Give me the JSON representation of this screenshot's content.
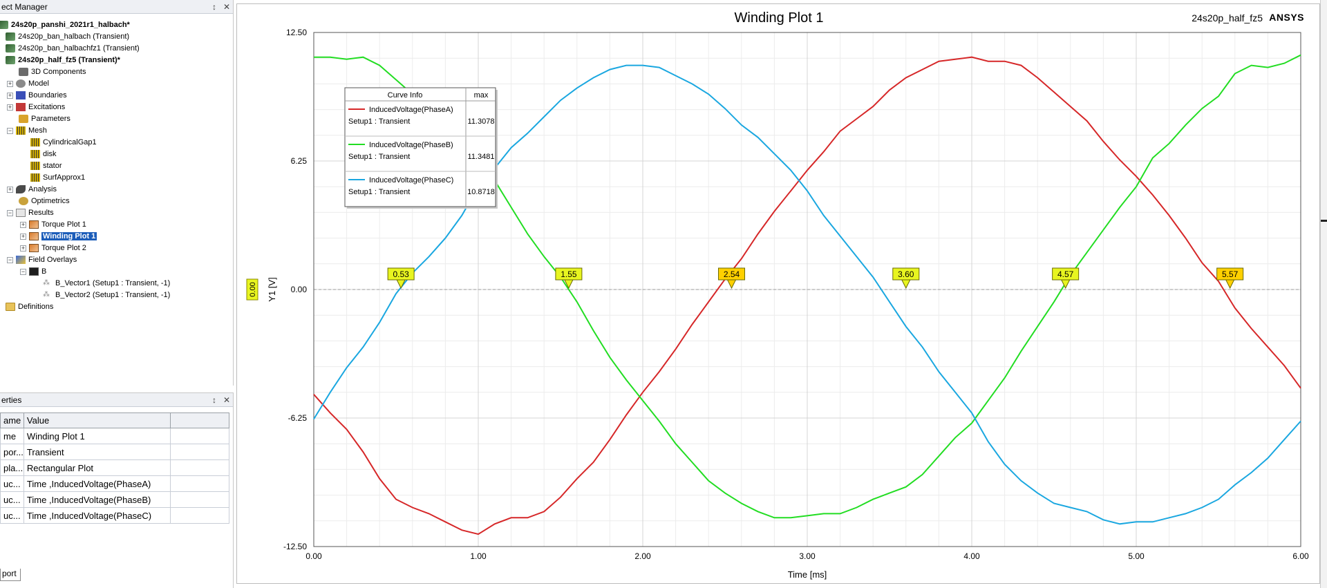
{
  "project_manager": {
    "title": "ect Manager",
    "pin_glyph": "↕",
    "close_glyph": "✕",
    "items": [
      {
        "label": "24s20p_panshi_2021r1_halbach*",
        "bold": true,
        "icon": "project-icon"
      },
      {
        "label": "24s20p_ban_halbach (Transient)",
        "icon": "design-icon"
      },
      {
        "label": "24s20p_ban_halbachfz1 (Transient)",
        "icon": "design-icon"
      },
      {
        "label": "24s20p_half_fz5 (Transient)*",
        "bold": true,
        "icon": "design-icon"
      },
      {
        "label": "3D Components",
        "icon": "components-icon"
      },
      {
        "label": "Model",
        "icon": "model-icon"
      },
      {
        "label": "Boundaries",
        "icon": "boundaries-icon"
      },
      {
        "label": "Excitations",
        "icon": "excitations-icon"
      },
      {
        "label": "Parameters",
        "icon": "parameters-icon"
      },
      {
        "label": "Mesh",
        "icon": "mesh-icon"
      },
      {
        "label": "CylindricalGap1",
        "icon": "mesh-op-icon"
      },
      {
        "label": "disk",
        "icon": "mesh-op-icon"
      },
      {
        "label": "stator",
        "icon": "mesh-op-icon"
      },
      {
        "label": "SurfApprox1",
        "icon": "mesh-op-icon"
      },
      {
        "label": "Analysis",
        "icon": "analysis-icon"
      },
      {
        "label": "Optimetrics",
        "icon": "optimetrics-icon"
      },
      {
        "label": "Results",
        "icon": "results-icon"
      },
      {
        "label": "Torque Plot 1",
        "icon": "plot-icon"
      },
      {
        "label": "Winding Plot 1",
        "icon": "plot-icon",
        "selected": true
      },
      {
        "label": "Torque Plot 2",
        "icon": "plot-icon"
      },
      {
        "label": "Field Overlays",
        "icon": "field-overlays-icon"
      },
      {
        "label": "B",
        "icon": "b-field-icon"
      },
      {
        "label": "B_Vector1 (Setup1 : Transient, -1)",
        "icon": "vector-icon"
      },
      {
        "label": "B_Vector2 (Setup1 : Transient, -1)",
        "icon": "vector-icon"
      },
      {
        "label": "Definitions",
        "icon": "folder-icon"
      }
    ]
  },
  "properties": {
    "title": "erties",
    "pin_glyph": "↕",
    "close_glyph": "✕",
    "columns": [
      "ame",
      "Value",
      ""
    ],
    "rows": [
      {
        "name": "me",
        "value": "Winding Plot 1"
      },
      {
        "name": "por...",
        "value": "Transient"
      },
      {
        "name": "pla...",
        "value": "Rectangular Plot"
      },
      {
        "name": "uc...",
        "value": "Time ,InducedVoltage(PhaseA)"
      },
      {
        "name": "uc...",
        "value": "Time ,InducedVoltage(PhaseB)"
      },
      {
        "name": "uc...",
        "value": "Time ,InducedVoltage(PhaseC)"
      }
    ],
    "tab_label": "port"
  },
  "plot": {
    "title": "Winding Plot 1",
    "design_name": "24s20p_half_fz5",
    "logo": "ANSYS"
  },
  "curve_info": {
    "header": "Curve Info",
    "max_header": "max",
    "entries": [
      {
        "name": "InducedVoltage(PhaseA)",
        "setup": "Setup1 : Transient",
        "max": "11.3078",
        "color": "#d62728"
      },
      {
        "name": "InducedVoltage(PhaseB)",
        "setup": "Setup1 : Transient",
        "max": "11.3481",
        "color": "#22dd22"
      },
      {
        "name": "InducedVoltage(PhaseC)",
        "setup": "Setup1 : Transient",
        "max": "10.8718",
        "color": "#1aa7e0"
      }
    ]
  },
  "chart_data": {
    "type": "line",
    "title": "Winding Plot 1",
    "xlabel": "Time [ms]",
    "ylabel": "Y1 [V]",
    "xlim": [
      0,
      6
    ],
    "ylim": [
      -12.5,
      12.5
    ],
    "xticks": [
      "0.00",
      "1.00",
      "2.00",
      "3.00",
      "4.00",
      "5.00",
      "6.00"
    ],
    "yticks": [
      "12.50",
      "6.25",
      "0.00",
      "-6.25",
      "-12.50"
    ],
    "grid": true,
    "y_marker": "0.00",
    "markers": [
      {
        "x": 0.53,
        "label": "0.53",
        "color": "#e8f520"
      },
      {
        "x": 1.55,
        "label": "1.55",
        "color": "#e8f520"
      },
      {
        "x": 2.54,
        "label": "2.54",
        "color": "#ffd000"
      },
      {
        "x": 3.6,
        "label": "3.60",
        "color": "#e8f520"
      },
      {
        "x": 4.57,
        "label": "4.57",
        "color": "#e8f520"
      },
      {
        "x": 5.57,
        "label": "5.57",
        "color": "#ffd000"
      }
    ],
    "series": [
      {
        "name": "InducedVoltage(PhaseA)",
        "color": "#d62728",
        "x": [
          0.0,
          0.1,
          0.2,
          0.3,
          0.4,
          0.5,
          0.6,
          0.7,
          0.8,
          0.9,
          1.0,
          1.1,
          1.2,
          1.3,
          1.4,
          1.5,
          1.6,
          1.7,
          1.8,
          1.9,
          2.0,
          2.1,
          2.2,
          2.3,
          2.4,
          2.5,
          2.6,
          2.7,
          2.8,
          2.9,
          3.0,
          3.1,
          3.2,
          3.3,
          3.4,
          3.5,
          3.6,
          3.7,
          3.8,
          3.9,
          4.0,
          4.1,
          4.2,
          4.3,
          4.4,
          4.5,
          4.6,
          4.7,
          4.8,
          4.9,
          5.0,
          5.1,
          5.2,
          5.3,
          5.4,
          5.5,
          5.6,
          5.7,
          5.8,
          5.9,
          6.0
        ],
        "y": [
          -5.1,
          -6.0,
          -6.8,
          -7.9,
          -9.2,
          -10.2,
          -10.6,
          -10.9,
          -11.3,
          -11.7,
          -11.9,
          -11.4,
          -11.1,
          -11.1,
          -10.8,
          -10.1,
          -9.2,
          -8.4,
          -7.3,
          -6.1,
          -5.0,
          -4.0,
          -2.9,
          -1.7,
          -0.6,
          0.5,
          1.5,
          2.7,
          3.8,
          4.8,
          5.8,
          6.7,
          7.7,
          8.3,
          8.9,
          9.7,
          10.3,
          10.7,
          11.1,
          11.2,
          11.3,
          11.1,
          11.1,
          10.9,
          10.3,
          9.6,
          8.9,
          8.2,
          7.2,
          6.3,
          5.5,
          4.6,
          3.6,
          2.5,
          1.3,
          0.4,
          -0.9,
          -1.9,
          -2.8,
          -3.7,
          -4.8
        ]
      },
      {
        "name": "InducedVoltage(PhaseB)",
        "color": "#22dd22",
        "x": [
          0.0,
          0.1,
          0.2,
          0.3,
          0.4,
          0.5,
          0.6,
          0.7,
          0.8,
          0.9,
          1.0,
          1.1,
          1.2,
          1.3,
          1.4,
          1.5,
          1.6,
          1.7,
          1.8,
          1.9,
          2.0,
          2.1,
          2.2,
          2.3,
          2.4,
          2.5,
          2.6,
          2.7,
          2.8,
          2.9,
          3.0,
          3.1,
          3.2,
          3.3,
          3.4,
          3.5,
          3.6,
          3.7,
          3.8,
          3.9,
          4.0,
          4.1,
          4.2,
          4.3,
          4.4,
          4.5,
          4.6,
          4.7,
          4.8,
          4.9,
          5.0,
          5.1,
          5.2,
          5.3,
          5.4,
          5.5,
          5.6,
          5.7,
          5.8,
          5.9,
          6.0
        ],
        "y": [
          11.3,
          11.3,
          11.2,
          11.3,
          10.9,
          10.2,
          9.5,
          8.9,
          7.9,
          7.0,
          6.0,
          5.3,
          4.0,
          2.7,
          1.6,
          0.6,
          -0.6,
          -2.0,
          -3.3,
          -4.4,
          -5.4,
          -6.4,
          -7.5,
          -8.4,
          -9.3,
          -9.9,
          -10.4,
          -10.8,
          -11.1,
          -11.1,
          -11.0,
          -10.9,
          -10.9,
          -10.6,
          -10.2,
          -9.9,
          -9.6,
          -9.0,
          -8.1,
          -7.2,
          -6.5,
          -5.4,
          -4.3,
          -3.0,
          -1.8,
          -0.6,
          0.7,
          1.8,
          2.9,
          4.0,
          5.0,
          6.4,
          7.1,
          8.0,
          8.8,
          9.4,
          10.5,
          10.9,
          10.8,
          11.0,
          11.4
        ]
      },
      {
        "name": "InducedVoltage(PhaseC)",
        "color": "#1aa7e0",
        "x": [
          0.0,
          0.1,
          0.2,
          0.3,
          0.4,
          0.5,
          0.6,
          0.7,
          0.8,
          0.9,
          1.0,
          1.1,
          1.2,
          1.3,
          1.4,
          1.5,
          1.6,
          1.7,
          1.8,
          1.9,
          2.0,
          2.1,
          2.2,
          2.3,
          2.4,
          2.5,
          2.6,
          2.7,
          2.8,
          2.9,
          3.0,
          3.1,
          3.2,
          3.3,
          3.4,
          3.5,
          3.6,
          3.7,
          3.8,
          3.9,
          4.0,
          4.1,
          4.2,
          4.3,
          4.4,
          4.5,
          4.6,
          4.7,
          4.8,
          4.9,
          5.0,
          5.1,
          5.2,
          5.3,
          5.4,
          5.5,
          5.6,
          5.7,
          5.8,
          5.9,
          6.0
        ],
        "y": [
          -6.3,
          -5.0,
          -3.8,
          -2.8,
          -1.6,
          -0.2,
          0.8,
          1.6,
          2.5,
          3.6,
          5.0,
          5.9,
          6.9,
          7.6,
          8.4,
          9.2,
          9.8,
          10.3,
          10.7,
          10.9,
          10.9,
          10.8,
          10.4,
          10.0,
          9.5,
          8.8,
          8.0,
          7.4,
          6.6,
          5.8,
          4.8,
          3.6,
          2.6,
          1.6,
          0.6,
          -0.6,
          -1.8,
          -2.8,
          -4.0,
          -5.0,
          -6.0,
          -7.4,
          -8.5,
          -9.3,
          -9.9,
          -10.4,
          -10.6,
          -10.8,
          -11.2,
          -11.4,
          -11.3,
          -11.3,
          -11.1,
          -10.9,
          -10.6,
          -10.2,
          -9.5,
          -8.9,
          -8.2,
          -7.3,
          -6.4
        ]
      }
    ]
  }
}
